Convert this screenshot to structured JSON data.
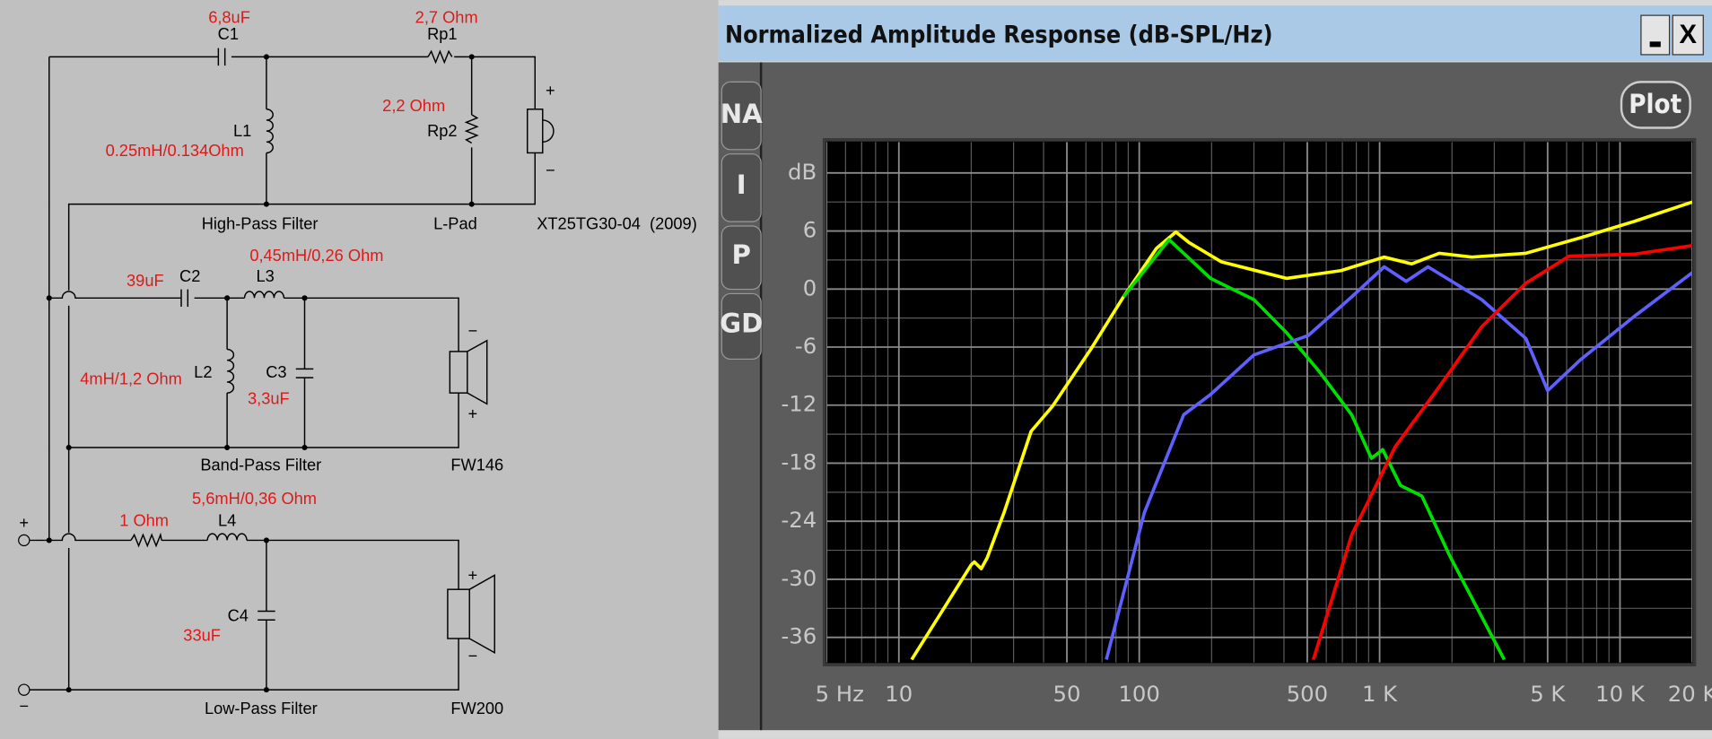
{
  "schematic": {
    "c1_value": "6,8uF",
    "c1": "C1",
    "rp1_value": "2,7 Ohm",
    "rp1": "Rp1",
    "rp2_value": "2,2 Ohm",
    "rp2": "Rp2",
    "l1": "L1",
    "l1_value": "0.25mH/0.134Ohm",
    "high_pass": "High-Pass Filter",
    "l_pad": "L-Pad",
    "tweeter": "XT25TG30-04  (2009)",
    "l3_value": "0,45mH/0,26 Ohm",
    "c2_value": "39uF",
    "c2": "C2",
    "l3": "L3",
    "l2": "L2",
    "c3": "C3",
    "l2_value": "4mH/1,2 Ohm",
    "c3_value": "3,3uF",
    "band_pass": "Band-Pass Filter",
    "midrange": "FW146",
    "l4_value": "5,6mH/0,36 Ohm",
    "r_value": "1 Ohm",
    "l4": "L4",
    "c4": "C4",
    "c4_value": "33uF",
    "low_pass": "Low-Pass Filter",
    "woofer": "FW200",
    "signs": [
      "+",
      "−",
      "+",
      "−",
      "−",
      "+",
      "+",
      "−"
    ]
  },
  "window": {
    "title": "Normalized Amplitude Response (dB-SPL/Hz)",
    "tabs": [
      "NA",
      "I",
      "P",
      "GD"
    ],
    "button": "Plot",
    "close": "X"
  },
  "chart_data": {
    "type": "line",
    "xscale": "log",
    "xlim": [
      5,
      20000
    ],
    "ylim": [
      -38.6,
      15.2
    ],
    "grid": true,
    "xticks": [
      {
        "value": 5,
        "label": "5 Hz"
      },
      10,
      50,
      100,
      500,
      {
        "value": 1000,
        "label": "1 K"
      },
      {
        "value": 5000,
        "label": "5 K"
      },
      {
        "value": 10000,
        "label": "10 K"
      },
      {
        "value": 20000,
        "label": "20 K"
      }
    ],
    "yticks": [
      {
        "value": 12,
        "label": "dB"
      },
      6,
      0,
      -6,
      -12,
      -18,
      -24,
      -30,
      -36
    ],
    "minor_xticks": [
      6,
      7,
      8,
      9,
      20,
      30,
      40,
      60,
      70,
      80,
      90,
      200,
      300,
      400,
      600,
      700,
      800,
      900,
      2000,
      3000,
      4000,
      6000,
      7000,
      8000,
      9000
    ],
    "minor_yticks": [
      9,
      3,
      -3,
      -9,
      -15,
      -21,
      -27,
      -33
    ],
    "series": [
      {
        "color": "#ffff00",
        "x": [
          11.3,
          20,
          20.6,
          22,
          23.3,
          27.4,
          35.5,
          43.6,
          63,
          86,
          118,
          142,
          161,
          220,
          410,
          690,
          1045,
          1360,
          1770,
          2420,
          4060,
          6850,
          11500,
          20000
        ],
        "values": [
          -38.3,
          -28.5,
          -28.2,
          -28.9,
          -27.8,
          -23.1,
          -14.7,
          -12.1,
          -6.2,
          -0.8,
          4.2,
          5.9,
          4.8,
          2.8,
          1.1,
          1.9,
          3.3,
          2.6,
          3.7,
          3.3,
          3.7,
          5.3,
          7.0,
          9.0
        ]
      },
      {
        "color": "#00e000",
        "x": [
          86,
          133,
          198,
          300,
          410,
          560,
          765,
          925,
          1030,
          1220,
          1500,
          1960,
          3300
        ],
        "values": [
          -0.8,
          5.1,
          1.1,
          -1.1,
          -4.5,
          -8.5,
          -13,
          -17.5,
          -16.6,
          -20.3,
          -21.4,
          -27.6,
          -38.3
        ]
      },
      {
        "color": "#6060ff",
        "x": [
          73,
          105,
          153,
          198,
          300,
          505,
          765,
          1045,
          1290,
          1590,
          2660,
          4060,
          5000,
          6850,
          11500,
          20000
        ],
        "values": [
          -38.3,
          -23.1,
          -13,
          -10.9,
          -6.8,
          -4.8,
          -0.8,
          2.3,
          0.8,
          2.3,
          -1.1,
          -5.1,
          -10.5,
          -7.3,
          -2.8,
          1.7
        ]
      },
      {
        "color": "#ff0000",
        "x": [
          530,
          765,
          1160,
          1770,
          2660,
          4060,
          6150,
          11500,
          20000
        ],
        "values": [
          -38.3,
          -25.4,
          -16.3,
          -10.1,
          -3.9,
          0.6,
          3.4,
          3.6,
          4.5
        ]
      }
    ]
  }
}
